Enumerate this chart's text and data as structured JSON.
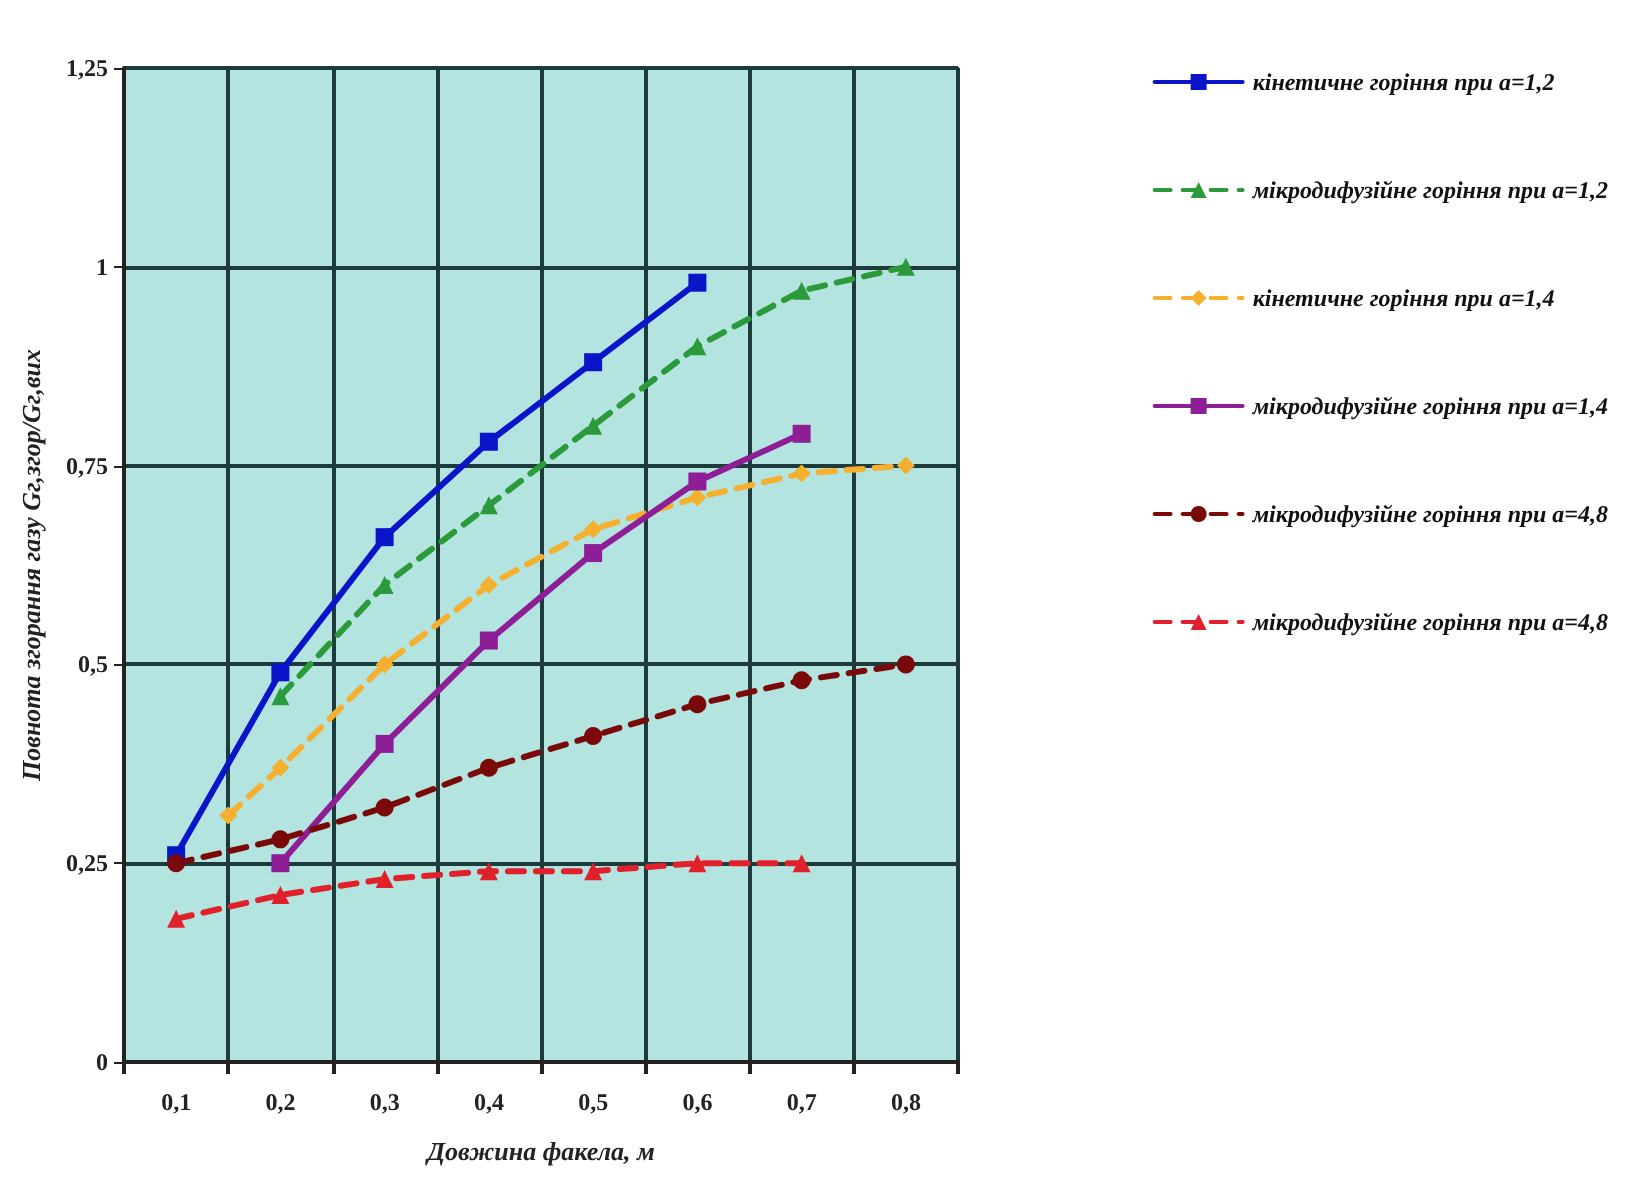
{
  "chart_data": {
    "type": "line",
    "xlabel": "Довжина факела, м",
    "ylabel": "Повнота згорання газу Gг,згор/Gг,вих",
    "xlim": [
      0.05,
      0.85
    ],
    "xticks": [
      {
        "value": 0.05,
        "label": null
      },
      {
        "value": 0.1,
        "label": "0,1"
      },
      {
        "value": 0.15,
        "label": null
      },
      {
        "value": 0.2,
        "label": "0,2"
      },
      {
        "value": 0.25,
        "label": null
      },
      {
        "value": 0.3,
        "label": "0,3"
      },
      {
        "value": 0.35,
        "label": null
      },
      {
        "value": 0.4,
        "label": "0,4"
      },
      {
        "value": 0.45,
        "label": null
      },
      {
        "value": 0.5,
        "label": "0,5"
      },
      {
        "value": 0.55,
        "label": null
      },
      {
        "value": 0.6,
        "label": "0,6"
      },
      {
        "value": 0.65,
        "label": null
      },
      {
        "value": 0.7,
        "label": "0,7"
      },
      {
        "value": 0.75,
        "label": null
      },
      {
        "value": 0.8,
        "label": "0,8"
      },
      {
        "value": 0.85,
        "label": null
      }
    ],
    "ylim": [
      0,
      1.25
    ],
    "yticks": [
      0,
      {
        "value": 0.25,
        "label": "0,25"
      },
      {
        "value": 0.5,
        "label": "0,5"
      },
      {
        "value": 0.75,
        "label": "0,75"
      },
      1,
      {
        "value": 1.25,
        "label": "1,25"
      }
    ],
    "grid": true,
    "legend": "right",
    "series": [
      {
        "name": "кінетичне горіння при а=1,2",
        "color": "#0a14c8",
        "marker": "square",
        "line_style": "solid",
        "x": [
          0.1,
          0.2,
          0.3,
          0.4,
          0.5,
          0.6
        ],
        "values": [
          0.26,
          0.49,
          0.66,
          0.78,
          0.88,
          0.98
        ]
      },
      {
        "name": "мікродифузійне горіння при а=1,2",
        "color": "#2a9a3a",
        "marker": "triangle",
        "line_style": "dashed",
        "x": [
          0.2,
          0.3,
          0.4,
          0.5,
          0.6,
          0.7,
          0.8
        ],
        "values": [
          0.46,
          0.6,
          0.7,
          0.8,
          0.9,
          0.97,
          1.0
        ]
      },
      {
        "name": "кінетичне горіння при а=1,4",
        "color": "#f5b030",
        "marker": "diamond",
        "line_style": "dashed",
        "x": [
          0.15,
          0.2,
          0.3,
          0.4,
          0.5,
          0.6,
          0.7,
          0.8
        ],
        "values": [
          0.31,
          0.37,
          0.5,
          0.6,
          0.67,
          0.71,
          0.74,
          0.75
        ]
      },
      {
        "name": "мікродифузійне горіння при а=1,4",
        "color": "#8e1e96",
        "marker": "square",
        "line_style": "solid",
        "x": [
          0.2,
          0.3,
          0.4,
          0.5,
          0.6,
          0.7
        ],
        "values": [
          0.25,
          0.4,
          0.53,
          0.64,
          0.73,
          0.79
        ]
      },
      {
        "name": "мікродифузійне горіння при а=4,8",
        "color": "#7a0a0a",
        "marker": "circle",
        "line_style": "dashed",
        "x": [
          0.1,
          0.2,
          0.3,
          0.4,
          0.5,
          0.6,
          0.7,
          0.8
        ],
        "values": [
          0.25,
          0.28,
          0.32,
          0.37,
          0.41,
          0.45,
          0.48,
          0.5
        ]
      },
      {
        "name": "мікродифузійне горіння при а=4,8",
        "color": "#e0202a",
        "marker": "triangle",
        "line_style": "dashed",
        "x": [
          0.1,
          0.2,
          0.3,
          0.4,
          0.5,
          0.6,
          0.7
        ],
        "values": [
          0.18,
          0.21,
          0.23,
          0.24,
          0.24,
          0.25,
          0.25
        ]
      }
    ]
  }
}
